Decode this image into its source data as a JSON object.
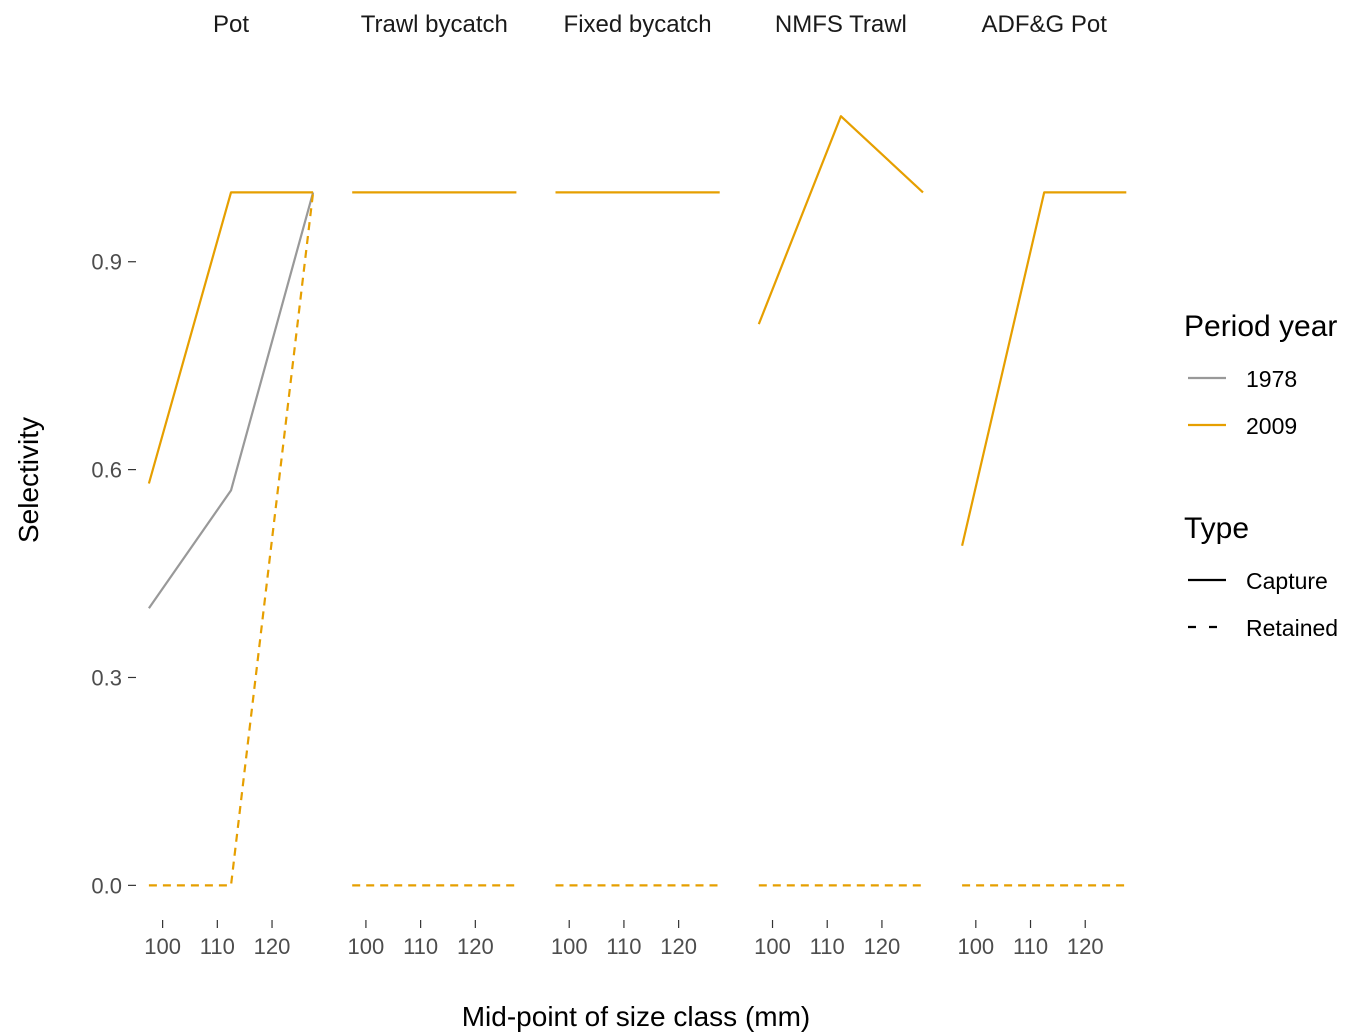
{
  "chart_data": {
    "type": "line",
    "xlabel": "Mid-point of size class (mm)",
    "ylabel": "Selectivity",
    "x": [
      97.5,
      112.5,
      127.5
    ],
    "xticks": [
      100,
      110,
      120
    ],
    "xlim": [
      95.5,
      129.5
    ],
    "yticks": [
      0.0,
      0.3,
      0.6,
      0.9
    ],
    "ytick_labels": [
      "0.0",
      "0.3",
      "0.6",
      "0.9"
    ],
    "ylim": [
      -0.05,
      1.22
    ],
    "grid": false,
    "legend_position": "right",
    "legend": {
      "period": {
        "title": "Period year",
        "entries": [
          {
            "label": "1978",
            "color": "#999999"
          },
          {
            "label": "2009",
            "color": "#E69F00"
          }
        ]
      },
      "type": {
        "title": "Type",
        "entries": [
          {
            "label": "Capture",
            "dash": "solid"
          },
          {
            "label": "Retained",
            "dash": "dashed"
          }
        ]
      }
    },
    "panels": [
      {
        "title": "Pot",
        "series": [
          {
            "period": "1978",
            "type": "Capture",
            "values": [
              0.4,
              0.57,
              1.0
            ]
          },
          {
            "period": "2009",
            "type": "Capture",
            "values": [
              0.58,
              1.0,
              1.0
            ]
          },
          {
            "period": "2009",
            "type": "Retained",
            "values": [
              0.0,
              0.0,
              1.0
            ]
          }
        ]
      },
      {
        "title": "Trawl bycatch",
        "series": [
          {
            "period": "2009",
            "type": "Capture",
            "values": [
              1.0,
              1.0,
              1.0
            ]
          },
          {
            "period": "2009",
            "type": "Retained",
            "values": [
              0.0,
              0.0,
              0.0
            ]
          }
        ]
      },
      {
        "title": "Fixed bycatch",
        "series": [
          {
            "period": "2009",
            "type": "Capture",
            "values": [
              1.0,
              1.0,
              1.0
            ]
          },
          {
            "period": "2009",
            "type": "Retained",
            "values": [
              0.0,
              0.0,
              0.0
            ]
          }
        ]
      },
      {
        "title": "NMFS Trawl",
        "series": [
          {
            "period": "2009",
            "type": "Capture",
            "values": [
              0.81,
              1.11,
              1.0
            ]
          },
          {
            "period": "2009",
            "type": "Retained",
            "values": [
              0.0,
              0.0,
              0.0
            ]
          }
        ]
      },
      {
        "title": "ADF&G Pot",
        "series": [
          {
            "period": "2009",
            "type": "Capture",
            "values": [
              0.49,
              1.0,
              1.0
            ]
          },
          {
            "period": "2009",
            "type": "Retained",
            "values": [
              0.0,
              0.0,
              0.0
            ]
          }
        ]
      }
    ]
  }
}
